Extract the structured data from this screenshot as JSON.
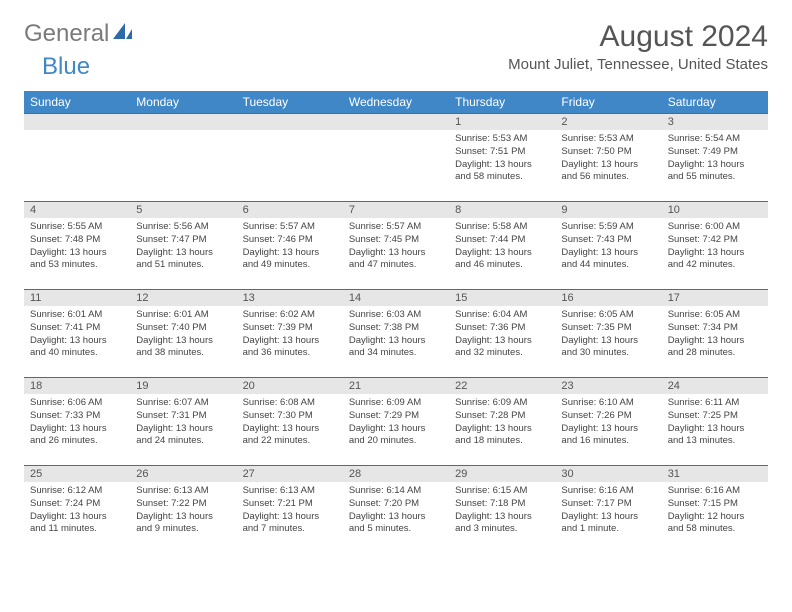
{
  "logo": {
    "text1": "General",
    "text2": "Blue"
  },
  "title": "August 2024",
  "location": "Mount Juliet, Tennessee, United States",
  "colors": {
    "header_bg": "#3f87c7",
    "header_fg": "#ffffff",
    "daynum_bg": "#e6e6e6",
    "row_border": "#3f6fa0",
    "text": "#444444",
    "logo_gray": "#7a7a7a",
    "logo_blue": "#3f87c7"
  },
  "weekdays": [
    "Sunday",
    "Monday",
    "Tuesday",
    "Wednesday",
    "Thursday",
    "Friday",
    "Saturday"
  ],
  "weeks": [
    [
      {
        "n": "",
        "lines": []
      },
      {
        "n": "",
        "lines": []
      },
      {
        "n": "",
        "lines": []
      },
      {
        "n": "",
        "lines": []
      },
      {
        "n": "1",
        "lines": [
          "Sunrise: 5:53 AM",
          "Sunset: 7:51 PM",
          "Daylight: 13 hours and 58 minutes."
        ]
      },
      {
        "n": "2",
        "lines": [
          "Sunrise: 5:53 AM",
          "Sunset: 7:50 PM",
          "Daylight: 13 hours and 56 minutes."
        ]
      },
      {
        "n": "3",
        "lines": [
          "Sunrise: 5:54 AM",
          "Sunset: 7:49 PM",
          "Daylight: 13 hours and 55 minutes."
        ]
      }
    ],
    [
      {
        "n": "4",
        "lines": [
          "Sunrise: 5:55 AM",
          "Sunset: 7:48 PM",
          "Daylight: 13 hours and 53 minutes."
        ]
      },
      {
        "n": "5",
        "lines": [
          "Sunrise: 5:56 AM",
          "Sunset: 7:47 PM",
          "Daylight: 13 hours and 51 minutes."
        ]
      },
      {
        "n": "6",
        "lines": [
          "Sunrise: 5:57 AM",
          "Sunset: 7:46 PM",
          "Daylight: 13 hours and 49 minutes."
        ]
      },
      {
        "n": "7",
        "lines": [
          "Sunrise: 5:57 AM",
          "Sunset: 7:45 PM",
          "Daylight: 13 hours and 47 minutes."
        ]
      },
      {
        "n": "8",
        "lines": [
          "Sunrise: 5:58 AM",
          "Sunset: 7:44 PM",
          "Daylight: 13 hours and 46 minutes."
        ]
      },
      {
        "n": "9",
        "lines": [
          "Sunrise: 5:59 AM",
          "Sunset: 7:43 PM",
          "Daylight: 13 hours and 44 minutes."
        ]
      },
      {
        "n": "10",
        "lines": [
          "Sunrise: 6:00 AM",
          "Sunset: 7:42 PM",
          "Daylight: 13 hours and 42 minutes."
        ]
      }
    ],
    [
      {
        "n": "11",
        "lines": [
          "Sunrise: 6:01 AM",
          "Sunset: 7:41 PM",
          "Daylight: 13 hours and 40 minutes."
        ]
      },
      {
        "n": "12",
        "lines": [
          "Sunrise: 6:01 AM",
          "Sunset: 7:40 PM",
          "Daylight: 13 hours and 38 minutes."
        ]
      },
      {
        "n": "13",
        "lines": [
          "Sunrise: 6:02 AM",
          "Sunset: 7:39 PM",
          "Daylight: 13 hours and 36 minutes."
        ]
      },
      {
        "n": "14",
        "lines": [
          "Sunrise: 6:03 AM",
          "Sunset: 7:38 PM",
          "Daylight: 13 hours and 34 minutes."
        ]
      },
      {
        "n": "15",
        "lines": [
          "Sunrise: 6:04 AM",
          "Sunset: 7:36 PM",
          "Daylight: 13 hours and 32 minutes."
        ]
      },
      {
        "n": "16",
        "lines": [
          "Sunrise: 6:05 AM",
          "Sunset: 7:35 PM",
          "Daylight: 13 hours and 30 minutes."
        ]
      },
      {
        "n": "17",
        "lines": [
          "Sunrise: 6:05 AM",
          "Sunset: 7:34 PM",
          "Daylight: 13 hours and 28 minutes."
        ]
      }
    ],
    [
      {
        "n": "18",
        "lines": [
          "Sunrise: 6:06 AM",
          "Sunset: 7:33 PM",
          "Daylight: 13 hours and 26 minutes."
        ]
      },
      {
        "n": "19",
        "lines": [
          "Sunrise: 6:07 AM",
          "Sunset: 7:31 PM",
          "Daylight: 13 hours and 24 minutes."
        ]
      },
      {
        "n": "20",
        "lines": [
          "Sunrise: 6:08 AM",
          "Sunset: 7:30 PM",
          "Daylight: 13 hours and 22 minutes."
        ]
      },
      {
        "n": "21",
        "lines": [
          "Sunrise: 6:09 AM",
          "Sunset: 7:29 PM",
          "Daylight: 13 hours and 20 minutes."
        ]
      },
      {
        "n": "22",
        "lines": [
          "Sunrise: 6:09 AM",
          "Sunset: 7:28 PM",
          "Daylight: 13 hours and 18 minutes."
        ]
      },
      {
        "n": "23",
        "lines": [
          "Sunrise: 6:10 AM",
          "Sunset: 7:26 PM",
          "Daylight: 13 hours and 16 minutes."
        ]
      },
      {
        "n": "24",
        "lines": [
          "Sunrise: 6:11 AM",
          "Sunset: 7:25 PM",
          "Daylight: 13 hours and 13 minutes."
        ]
      }
    ],
    [
      {
        "n": "25",
        "lines": [
          "Sunrise: 6:12 AM",
          "Sunset: 7:24 PM",
          "Daylight: 13 hours and 11 minutes."
        ]
      },
      {
        "n": "26",
        "lines": [
          "Sunrise: 6:13 AM",
          "Sunset: 7:22 PM",
          "Daylight: 13 hours and 9 minutes."
        ]
      },
      {
        "n": "27",
        "lines": [
          "Sunrise: 6:13 AM",
          "Sunset: 7:21 PM",
          "Daylight: 13 hours and 7 minutes."
        ]
      },
      {
        "n": "28",
        "lines": [
          "Sunrise: 6:14 AM",
          "Sunset: 7:20 PM",
          "Daylight: 13 hours and 5 minutes."
        ]
      },
      {
        "n": "29",
        "lines": [
          "Sunrise: 6:15 AM",
          "Sunset: 7:18 PM",
          "Daylight: 13 hours and 3 minutes."
        ]
      },
      {
        "n": "30",
        "lines": [
          "Sunrise: 6:16 AM",
          "Sunset: 7:17 PM",
          "Daylight: 13 hours and 1 minute."
        ]
      },
      {
        "n": "31",
        "lines": [
          "Sunrise: 6:16 AM",
          "Sunset: 7:15 PM",
          "Daylight: 12 hours and 58 minutes."
        ]
      }
    ]
  ]
}
